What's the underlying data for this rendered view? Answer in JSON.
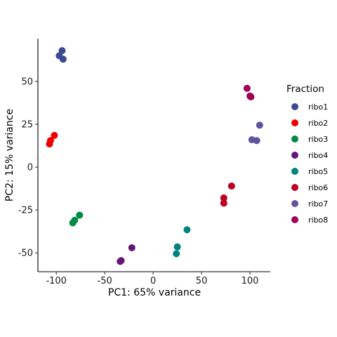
{
  "chart_data": {
    "type": "scatter",
    "title": "",
    "xlabel": "PC1: 65% variance",
    "ylabel": "PC2: 15% variance",
    "xlim": [
      -119,
      121
    ],
    "ylim": [
      -61,
      75
    ],
    "xticks": [
      -100,
      -50,
      0,
      50,
      100
    ],
    "yticks": [
      -50,
      -25,
      0,
      25,
      50
    ],
    "xtick_labels": [
      "-100",
      "-50",
      "0",
      "50",
      "100"
    ],
    "ytick_labels": [
      "-50",
      "-25",
      "0",
      "25",
      "50"
    ],
    "grid": false,
    "legend": {
      "title": "Fraction",
      "position": "right"
    },
    "series": [
      {
        "name": "ribo1",
        "color": "#3B4992",
        "points": [
          [
            -94,
            68
          ],
          [
            -97,
            65
          ],
          [
            -93,
            63
          ]
        ]
      },
      {
        "name": "ribo2",
        "color": "#EE0000",
        "points": [
          [
            -102,
            18.5
          ],
          [
            -106,
            15.5
          ],
          [
            -107,
            13.5
          ]
        ]
      },
      {
        "name": "ribo3",
        "color": "#008B45",
        "points": [
          [
            -76,
            -28
          ],
          [
            -81,
            -31
          ],
          [
            -83,
            -32.5
          ]
        ]
      },
      {
        "name": "ribo4",
        "color": "#631879",
        "points": [
          [
            -22,
            -47
          ],
          [
            -33,
            -54.5
          ],
          [
            -34,
            -55
          ]
        ]
      },
      {
        "name": "ribo5",
        "color": "#008280",
        "points": [
          [
            35,
            -36.5
          ],
          [
            25,
            -46.5
          ],
          [
            24,
            -50.5
          ]
        ]
      },
      {
        "name": "ribo6",
        "color": "#BB0021",
        "points": [
          [
            81,
            -11
          ],
          [
            73,
            -18
          ],
          [
            73,
            -21
          ]
        ]
      },
      {
        "name": "ribo7",
        "color": "#5F559B",
        "points": [
          [
            110,
            24.5
          ],
          [
            102,
            16
          ],
          [
            107,
            15.5
          ]
        ]
      },
      {
        "name": "ribo8",
        "color": "#A20056",
        "points": [
          [
            97,
            46
          ],
          [
            100,
            41.5
          ],
          [
            101,
            41
          ]
        ]
      }
    ]
  }
}
